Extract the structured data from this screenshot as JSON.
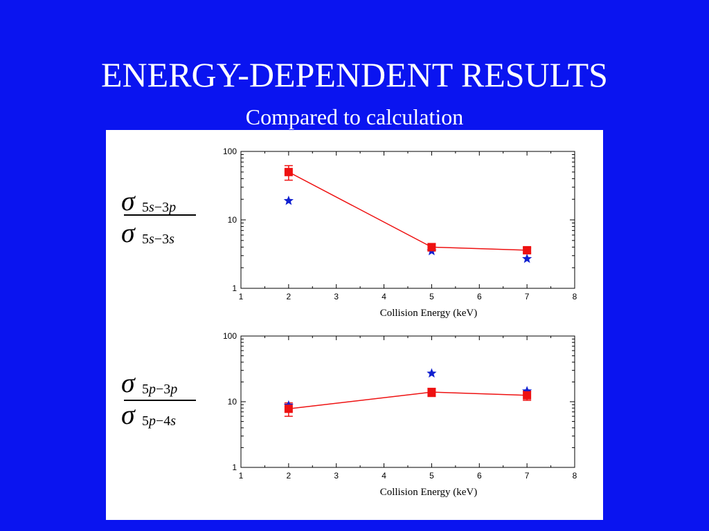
{
  "slide": {
    "title": "ENERGY-DEPENDENT RESULTS",
    "subtitle": "Compared to calculation"
  },
  "colors": {
    "background": "#0a14f0",
    "experiment": "#ee1111",
    "calculation": "#1020d0"
  },
  "labels": {
    "top": {
      "num": {
        "sigma": "σ",
        "a": "5",
        "b": "s",
        "c": "−3",
        "d": "p"
      },
      "den": {
        "sigma": "σ",
        "a": "5",
        "b": "s",
        "c": "−3",
        "d": "s"
      }
    },
    "bottom": {
      "num": {
        "sigma": "σ",
        "a": "5",
        "b": "p",
        "c": "−3",
        "d": "p"
      },
      "den": {
        "sigma": "σ",
        "a": "5",
        "b": "p",
        "c": "−4",
        "d": "s"
      }
    }
  },
  "chart_data": [
    {
      "type": "scatter",
      "title": "",
      "xlabel": "Collision Energy (keV)",
      "ylabel": "",
      "xlim": [
        1,
        8
      ],
      "ylim": [
        1,
        100
      ],
      "yscale": "log",
      "xticks": [
        "1",
        "2",
        "3",
        "4",
        "5",
        "6",
        "7",
        "8"
      ],
      "yticks": [
        "1",
        "10",
        "100"
      ],
      "grid": false,
      "series": [
        {
          "marker": "square",
          "line": true,
          "x": [
            2,
            5,
            7
          ],
          "y": [
            50,
            4,
            3.6
          ],
          "yerr": [
            12,
            0.5,
            0.3
          ]
        },
        {
          "marker": "star",
          "line": false,
          "x": [
            2,
            5,
            7
          ],
          "y": [
            19,
            3.5,
            2.7
          ]
        }
      ]
    },
    {
      "type": "scatter",
      "title": "",
      "xlabel": "Collision Energy (keV)",
      "ylabel": "",
      "xlim": [
        1,
        8
      ],
      "ylim": [
        1,
        100
      ],
      "yscale": "log",
      "xticks": [
        "1",
        "2",
        "3",
        "4",
        "5",
        "6",
        "7",
        "8"
      ],
      "yticks": [
        "1",
        "10",
        "100"
      ],
      "grid": false,
      "series": [
        {
          "marker": "square",
          "line": true,
          "x": [
            2,
            5,
            7
          ],
          "y": [
            7.8,
            14,
            12.5
          ],
          "yerr": [
            1.8,
            2,
            2
          ]
        },
        {
          "marker": "star",
          "line": false,
          "x": [
            2,
            5,
            7
          ],
          "y": [
            8.8,
            27,
            14.5
          ]
        }
      ]
    }
  ]
}
